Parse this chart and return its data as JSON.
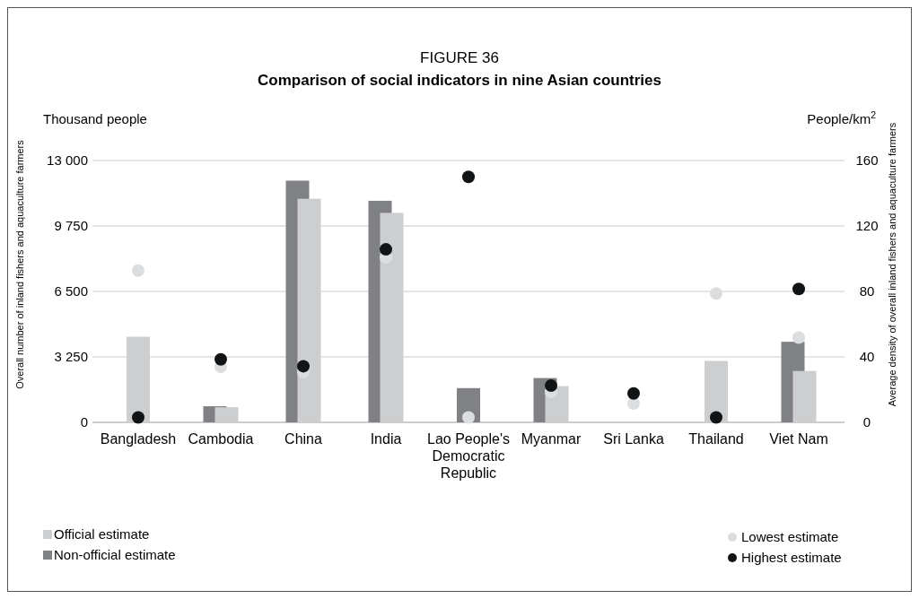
{
  "chart_data": {
    "type": "bar",
    "title": "FIGURE 36",
    "subtitle": "Comparison of social indicators in nine Asian countries",
    "ylabel": "Overall number of inland fishers and aquaculture farmers",
    "y2label": "Average density of overall inland fishers and aquaculture farmers",
    "annotations": [
      "Thousand people",
      "People/km$^{2}$"
    ],
    "categories": [
      "Bangladesh",
      "Cambodia",
      "China",
      "India",
      "Lao People's Democratic Republic",
      "Myanmar",
      "Sri Lanka",
      "Thailand",
      "Viet Nam"
    ],
    "series": [
      {
        "name": "Official estimate",
        "color": "#cdcecf",
        "values": [
          4250,
          750,
          11100,
          10400,
          null,
          1800,
          null,
          3050,
          2550
        ]
      },
      {
        "name": "Non-official estimate",
        "color": "#808184",
        "values": [
          null,
          800,
          12000,
          11000,
          1700,
          2200,
          null,
          null,
          4000
        ]
      },
      {
        "name": "Lowest estimate",
        "type": "scatter",
        "axis": "y2",
        "color": "#dcdddf",
        "values": [
          92.7,
          34,
          30.7,
          100.7,
          3,
          18.5,
          11.5,
          78.8,
          51.8
        ]
      },
      {
        "name": "Highest estimate",
        "type": "scatter",
        "axis": "y2",
        "color": "#111314",
        "values": [
          3,
          38.5,
          34.3,
          105.7,
          150,
          22.5,
          17.7,
          3,
          81.5
        ]
      }
    ],
    "ylim": [
      0,
      13000
    ],
    "yticks": [
      0,
      {
        "value": 3250,
        "label": "3 250"
      },
      {
        "value": 6500,
        "label": "6 500"
      },
      {
        "value": 9750,
        "label": "9 750"
      },
      {
        "value": 13000,
        "label": "13 000"
      }
    ],
    "y2lim": [
      0,
      160
    ],
    "y2ticks": [
      0,
      40,
      80,
      120,
      160
    ],
    "grid": "y",
    "legend": "bottom",
    "marker": "circle"
  }
}
